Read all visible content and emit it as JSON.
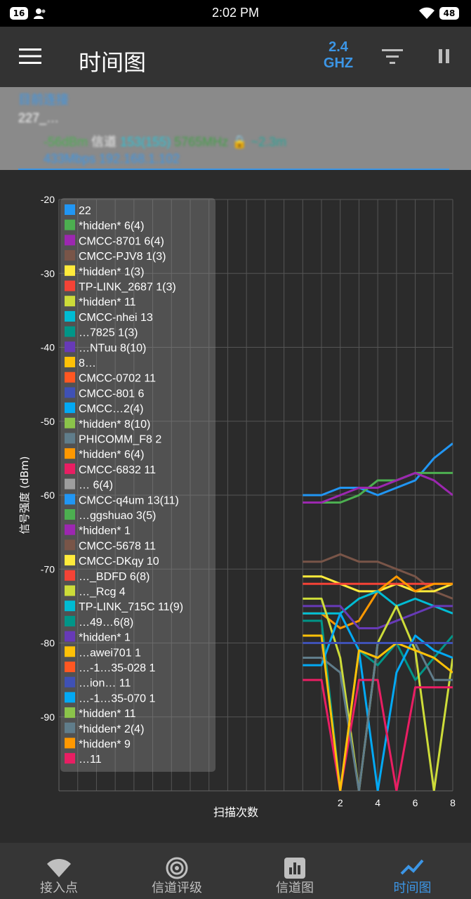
{
  "status_bar": {
    "notif_count": "16",
    "time": "2:02 PM",
    "battery": "48"
  },
  "app_bar": {
    "title": "时间图",
    "band_line1": "2.4",
    "band_line2": "GHZ"
  },
  "current_connection": {
    "heading": "目前连接",
    "ssid_masked": "227_…",
    "signal": "-56dBm",
    "channel_label": "信道",
    "channel_value": "153(155)",
    "frequency": "5765MHz",
    "distance": "~2.3m",
    "link_info": "433Mbps 192.168.1.102"
  },
  "chart_data": {
    "type": "line",
    "ylabel": "信号强度 (dBm)",
    "xlabel": "扫描次数",
    "y_ticks": [
      "-20",
      "-30",
      "-40",
      "-50",
      "-60",
      "-70",
      "-80",
      "-90"
    ],
    "x_ticks": [
      "2",
      "4",
      "6",
      "8"
    ],
    "ylim": [
      -100,
      -20
    ],
    "xlim": [
      -13,
      8
    ],
    "grid": true,
    "legend_placement": "top-left overlay",
    "legend": [
      {
        "label": "22",
        "color": "#2196f3"
      },
      {
        "label": "*hidden* 6(4)",
        "color": "#4caf50"
      },
      {
        "label": "CMCC-8701 6(4)",
        "color": "#9c27b0"
      },
      {
        "label": "CMCC-PJV8 1(3)",
        "color": "#795548"
      },
      {
        "label": "*hidden* 1(3)",
        "color": "#ffeb3b"
      },
      {
        "label": "TP-LINK_2687 1(3)",
        "color": "#f44336"
      },
      {
        "label": "*hidden* 11",
        "color": "#cddc39"
      },
      {
        "label": "CMCC-nhei 13",
        "color": "#00bcd4"
      },
      {
        "label": "…7825 1(3)",
        "color": "#009688"
      },
      {
        "label": "…NTuu 8(10)",
        "color": "#673ab7"
      },
      {
        "label": "8…",
        "color": "#ffc107"
      },
      {
        "label": "CMCC-0702 11",
        "color": "#ff5722"
      },
      {
        "label": "CMCC-801 6",
        "color": "#3f51b5"
      },
      {
        "label": "CMCC…2(4)",
        "color": "#03a9f4"
      },
      {
        "label": "*hidden* 8(10)",
        "color": "#8bc34a"
      },
      {
        "label": "PHICOMM_F8 2",
        "color": "#607d8b"
      },
      {
        "label": "*hidden* 6(4)",
        "color": "#ff9800"
      },
      {
        "label": "CMCC-6832 11",
        "color": "#e91e63"
      },
      {
        "label": "… 6(4)",
        "color": "#9e9e9e"
      },
      {
        "label": "CMCC-q4um 13(11)",
        "color": "#2196f3"
      },
      {
        "label": "…ggshuao 3(5)",
        "color": "#4caf50"
      },
      {
        "label": "*hidden* 1",
        "color": "#9c27b0"
      },
      {
        "label": "CMCC-5678 11",
        "color": "#795548"
      },
      {
        "label": "CMCC-DKqy 10",
        "color": "#ffeb3b"
      },
      {
        "label": "…_BDFD 6(8)",
        "color": "#f44336"
      },
      {
        "label": "…_Rcg 4",
        "color": "#cddc39"
      },
      {
        "label": "TP-LINK_715C 11(9)",
        "color": "#00bcd4"
      },
      {
        "label": "…49…6(8)",
        "color": "#009688"
      },
      {
        "label": "*hidden* 1",
        "color": "#673ab7"
      },
      {
        "label": "…awei701 1",
        "color": "#ffc107"
      },
      {
        "label": "…-1…35-028 1",
        "color": "#ff5722"
      },
      {
        "label": "…ion… 11",
        "color": "#3f51b5"
      },
      {
        "label": "…-1…35-070 1",
        "color": "#03a9f4"
      },
      {
        "label": "*hidden* 11",
        "color": "#8bc34a"
      },
      {
        "label": "*hidden* 2(4)",
        "color": "#607d8b"
      },
      {
        "label": "*hidden* 9",
        "color": "#ff9800"
      },
      {
        "label": "…11",
        "color": "#e91e63"
      }
    ],
    "x": [
      0,
      1,
      2,
      3,
      4,
      5,
      6,
      7,
      8
    ],
    "series": [
      {
        "color": "#2196f3",
        "values": [
          -60,
          -60,
          -59,
          -59,
          -60,
          -59,
          -58,
          -55,
          -53
        ]
      },
      {
        "color": "#4caf50",
        "values": [
          -61,
          -61,
          -61,
          -60,
          -58,
          -58,
          -57,
          -57,
          -57
        ]
      },
      {
        "color": "#9c27b0",
        "values": [
          -61,
          -61,
          -60,
          -59,
          -59,
          -58,
          -57,
          -58,
          -60
        ]
      },
      {
        "color": "#795548",
        "values": [
          -69,
          -69,
          -68,
          -69,
          -69,
          -70,
          -71,
          -73,
          -74
        ]
      },
      {
        "color": "#ffeb3b",
        "values": [
          -71,
          -71,
          -72,
          -73,
          -73,
          -72,
          -73,
          -73,
          -72
        ]
      },
      {
        "color": "#f44336",
        "values": [
          -72,
          -72,
          -72,
          -72,
          -72,
          -72,
          -72,
          -72,
          -72
        ]
      },
      {
        "color": "#ff9800",
        "values": [
          -76,
          -76,
          -78,
          -77,
          -73,
          -71,
          -73,
          -72,
          -72
        ]
      },
      {
        "color": "#00bcd4",
        "values": [
          -76,
          -76,
          -76,
          -74,
          -73,
          -75,
          -74,
          -75,
          -76
        ]
      },
      {
        "color": "#673ab7",
        "values": [
          -75,
          -75,
          -75,
          -78,
          -78,
          -77,
          -76,
          -75,
          -75
        ]
      },
      {
        "color": "#009688",
        "values": [
          -77,
          -77,
          -100,
          -81,
          -83,
          -80,
          -85,
          -82,
          -79
        ]
      },
      {
        "color": "#cddc39",
        "values": [
          -74,
          -74,
          -82,
          -100,
          -80,
          -75,
          -81,
          -100,
          -82
        ]
      },
      {
        "color": "#03a9f4",
        "values": [
          -83,
          -83,
          -76,
          -81,
          -100,
          -84,
          -79,
          -81,
          -82
        ]
      },
      {
        "color": "#e91e63",
        "values": [
          -85,
          -85,
          -100,
          -85,
          -85,
          -100,
          -86,
          -86,
          -86
        ]
      },
      {
        "color": "#607d8b",
        "values": [
          -82,
          -82,
          -84,
          -100,
          -80,
          -80,
          -80,
          -85,
          -85
        ]
      },
      {
        "color": "#ffc107",
        "values": [
          -79,
          -79,
          -100,
          -81,
          -82,
          -80,
          -81,
          -82,
          -84
        ]
      },
      {
        "color": "#3f51b5",
        "values": [
          -80,
          -80,
          -80,
          -80,
          -80,
          -80,
          -80,
          -80,
          -80
        ]
      }
    ]
  },
  "nav": {
    "items": [
      {
        "label": "接入点"
      },
      {
        "label": "信道评级"
      },
      {
        "label": "信道图"
      },
      {
        "label": "时间图"
      }
    ]
  },
  "colors": {
    "accent": "#3c96e6",
    "signal_green": "#4caf50",
    "channel_cyan": "#26c6da",
    "frequency_green": "#43a047",
    "distance_teal": "#26a69a"
  }
}
